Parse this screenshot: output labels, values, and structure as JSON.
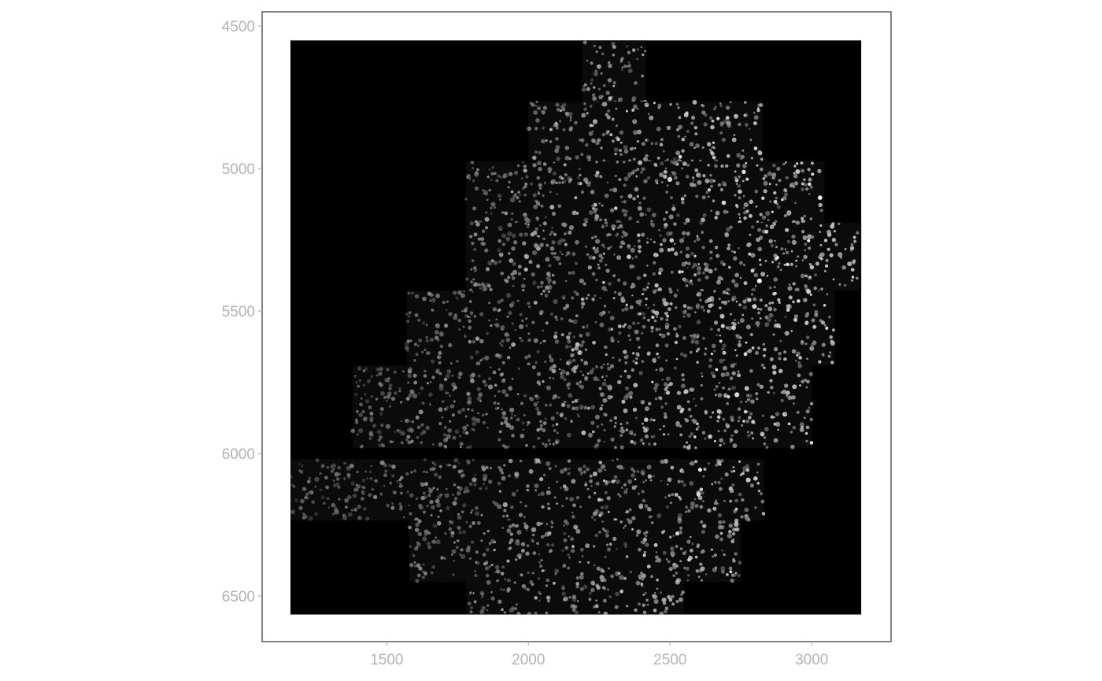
{
  "chart_data": {
    "type": "image",
    "image_description": "grayscale fluorescence microscopy raster (bright nuclei on black background)",
    "x_ticks": [
      "1500",
      "2000",
      "2500",
      "3000"
    ],
    "y_ticks": [
      "4500",
      "5000",
      "5500",
      "6000",
      "6500"
    ],
    "x_tick_values": [
      1500,
      2000,
      2500,
      3000
    ],
    "y_tick_values": [
      4500,
      5000,
      5500,
      6000,
      6500
    ],
    "xlim": [
      1060,
      3280
    ],
    "ylim": [
      4450,
      6660
    ],
    "y_reversed": true,
    "image_extent": {
      "x": [
        1160,
        3175
      ],
      "y": [
        4550,
        6565
      ]
    },
    "tissue_regions": [
      {
        "x": [
          2190,
          2415
        ],
        "y": [
          4550,
          4800
        ]
      },
      {
        "x": [
          2000,
          2825
        ],
        "y": [
          4765,
          5030
        ]
      },
      {
        "x": [
          1780,
          3045
        ],
        "y": [
          4975,
          5195
        ]
      },
      {
        "x": [
          1780,
          3175
        ],
        "y": [
          5190,
          5430
        ]
      },
      {
        "x": [
          1570,
          3080
        ],
        "y": [
          5430,
          5690
        ]
      },
      {
        "x": [
          1380,
          3000
        ],
        "y": [
          5690,
          5980
        ]
      },
      {
        "x": [
          1160,
          2830
        ],
        "y": [
          6020,
          6235
        ]
      },
      {
        "x": [
          1580,
          2750
        ],
        "y": [
          6235,
          6450
        ]
      },
      {
        "x": [
          1780,
          2550
        ],
        "y": [
          6450,
          6565
        ]
      }
    ],
    "grid": false,
    "legend": "none"
  },
  "colors": {
    "background": "#ffffff",
    "panel_border": "#333333",
    "image_background": "#000000",
    "tick_label": "#b3b3b3",
    "tick_mark": "#b3b3b3"
  }
}
